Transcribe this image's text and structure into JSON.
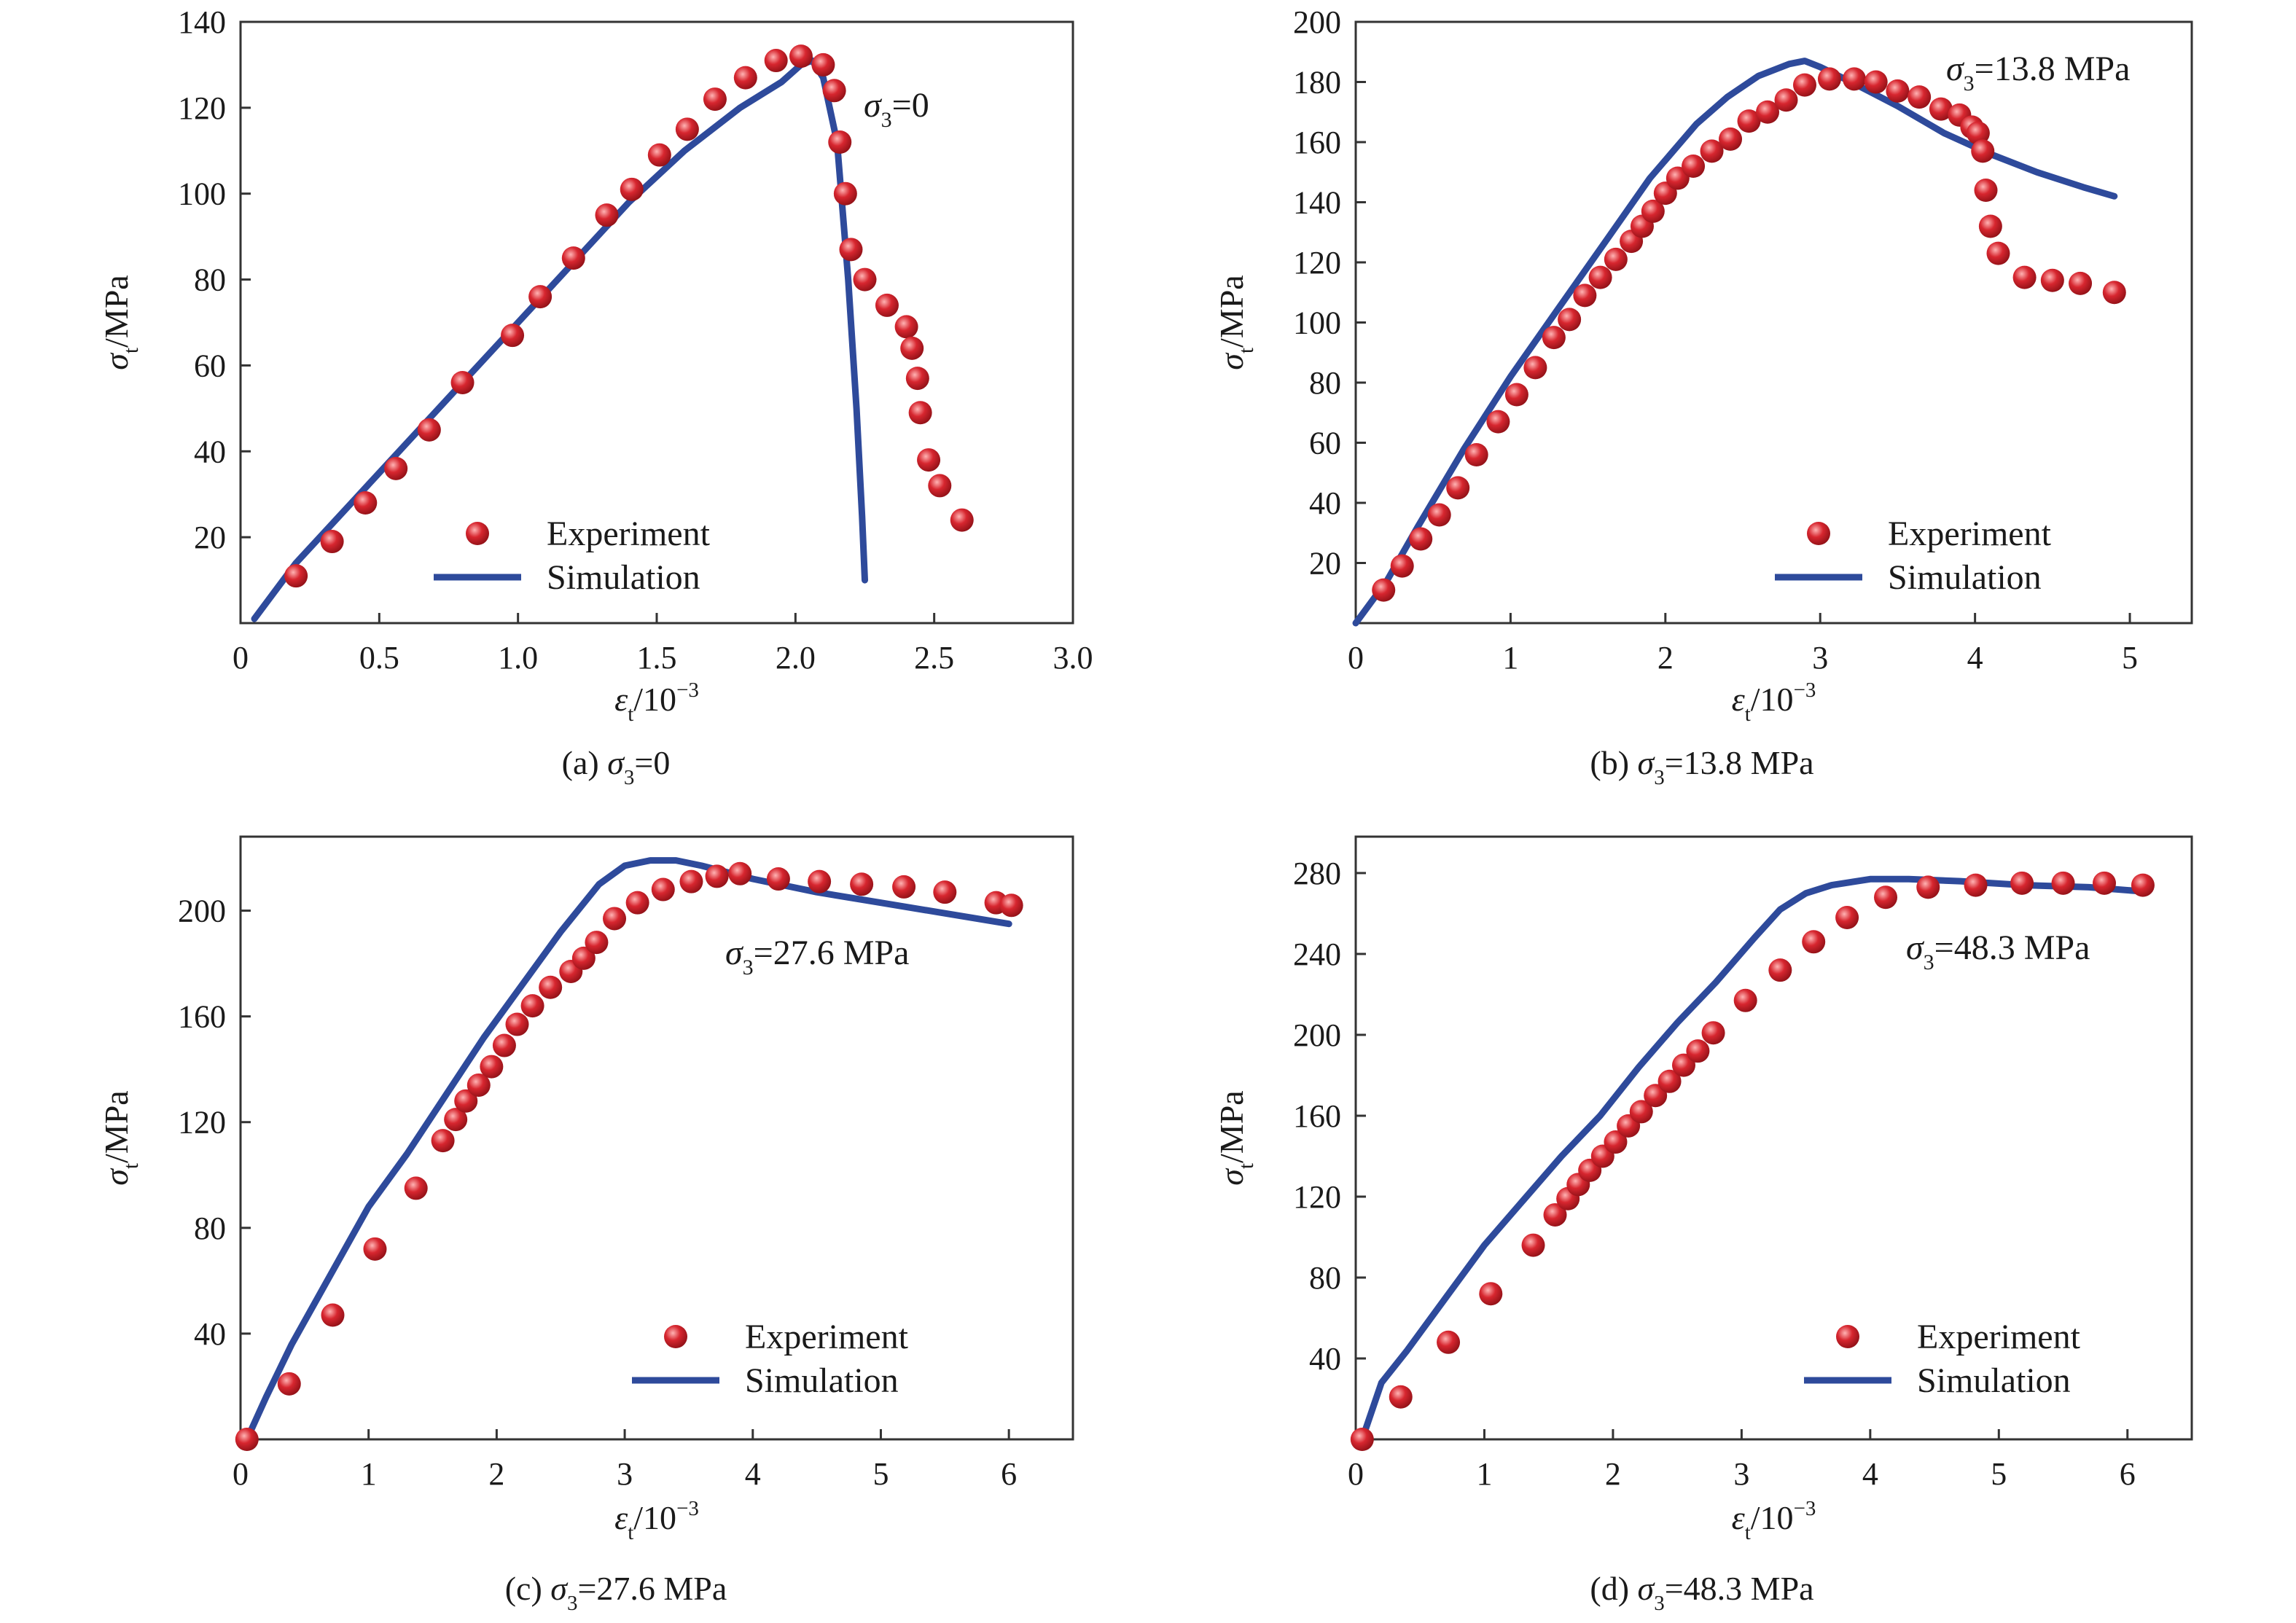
{
  "colors": {
    "experiment": "#d7262f",
    "simulation": "#2e4a9b",
    "axis": "#333333"
  },
  "chart_data": [
    {
      "type": "scatter+line",
      "caption": {
        "pre": "(a) ",
        "sym": "σ",
        "sub": "3",
        "post": "=0"
      },
      "annotation": {
        "sym": "σ",
        "sub": "3",
        "post": "=0"
      },
      "xlabel": {
        "sym": "ε",
        "sub": "t",
        "post": "/10",
        "sup": "−3"
      },
      "ylabel": {
        "sym": "σ",
        "sub": "t",
        "post": "/MPa"
      },
      "xlim": [
        0,
        3.0
      ],
      "ylim": [
        0,
        140
      ],
      "xticks": [
        0,
        0.5,
        1.0,
        1.5,
        2.0,
        2.5,
        3.0
      ],
      "xtick_labels": [
        "0",
        "0.5",
        "1.0",
        "1.5",
        "2.0",
        "2.5",
        "3.0"
      ],
      "yticks": [
        20,
        40,
        60,
        80,
        100,
        120,
        140
      ],
      "ytick_labels": [
        "20",
        "40",
        "60",
        "80",
        "100",
        "120",
        "140"
      ],
      "legend": {
        "experiment": "Experiment",
        "simulation": "Simulation"
      },
      "series": [
        {
          "name": "Experiment",
          "kind": "points",
          "x": [
            0.2,
            0.33,
            0.45,
            0.56,
            0.68,
            0.8,
            0.98,
            1.08,
            1.2,
            1.32,
            1.41,
            1.51,
            1.61,
            1.71,
            1.82,
            1.93,
            2.02,
            2.1,
            2.14,
            2.16,
            2.18,
            2.2,
            2.25,
            2.33,
            2.4,
            2.42,
            2.44,
            2.45,
            2.48,
            2.52,
            2.6
          ],
          "y": [
            11,
            19,
            28,
            36,
            45,
            56,
            67,
            76,
            85,
            95,
            101,
            109,
            115,
            122,
            127,
            131,
            132,
            130,
            124,
            112,
            100,
            87,
            80,
            74,
            69,
            64,
            57,
            49,
            38,
            32,
            24
          ]
        },
        {
          "name": "Simulation",
          "kind": "line",
          "x": [
            0.05,
            0.2,
            0.4,
            0.6,
            0.8,
            1.0,
            1.2,
            1.4,
            1.6,
            1.8,
            1.95,
            2.02,
            2.06,
            2.1,
            2.15,
            2.19,
            2.22,
            2.24,
            2.25
          ],
          "y": [
            1,
            14,
            28,
            42,
            56,
            70,
            84,
            98,
            110,
            120,
            126,
            130,
            131,
            127,
            112,
            80,
            50,
            25,
            10
          ]
        }
      ]
    },
    {
      "type": "scatter+line",
      "caption": {
        "pre": "(b) ",
        "sym": "σ",
        "sub": "3",
        "post": "=13.8 MPa"
      },
      "annotation": {
        "sym": "σ",
        "sub": "3",
        "post": "=13.8 MPa"
      },
      "xlabel": {
        "sym": "ε",
        "sub": "t",
        "post": "/10",
        "sup": "−3"
      },
      "ylabel": {
        "sym": "σ",
        "sub": "t",
        "post": "/MPa"
      },
      "xlim": [
        0,
        5.4
      ],
      "ylim": [
        0,
        200
      ],
      "xticks": [
        0,
        1,
        2,
        3,
        4,
        5
      ],
      "xtick_labels": [
        "0",
        "1",
        "2",
        "3",
        "4",
        "5"
      ],
      "yticks": [
        20,
        40,
        60,
        80,
        100,
        120,
        140,
        160,
        180,
        200
      ],
      "ytick_labels": [
        "20",
        "40",
        "60",
        "80",
        "100",
        "120",
        "140",
        "160",
        "180",
        "200"
      ],
      "legend": {
        "experiment": "Experiment",
        "simulation": "Simulation"
      },
      "series": [
        {
          "name": "Experiment",
          "kind": "points",
          "x": [
            0.18,
            0.3,
            0.42,
            0.54,
            0.66,
            0.78,
            0.92,
            1.04,
            1.16,
            1.28,
            1.38,
            1.48,
            1.58,
            1.68,
            1.78,
            1.85,
            1.92,
            2.0,
            2.08,
            2.18,
            2.3,
            2.42,
            2.54,
            2.66,
            2.78,
            2.9,
            3.06,
            3.22,
            3.36,
            3.5,
            3.64,
            3.78,
            3.9,
            3.98,
            4.02,
            4.05,
            4.07,
            4.1,
            4.15,
            4.32,
            4.5,
            4.68,
            4.9
          ],
          "y": [
            11,
            19,
            28,
            36,
            45,
            56,
            67,
            76,
            85,
            95,
            101,
            109,
            115,
            121,
            127,
            132,
            137,
            143,
            148,
            152,
            157,
            161,
            167,
            170,
            174,
            179,
            181,
            181,
            180,
            177,
            175,
            171,
            169,
            165,
            163,
            157,
            144,
            132,
            123,
            115,
            114,
            113,
            110
          ]
        },
        {
          "name": "Simulation",
          "kind": "line",
          "x": [
            0.0,
            0.2,
            0.4,
            0.7,
            1.0,
            1.3,
            1.6,
            1.9,
            2.2,
            2.4,
            2.6,
            2.8,
            2.9,
            3.0,
            3.2,
            3.5,
            3.8,
            4.1,
            4.4,
            4.7,
            4.9
          ],
          "y": [
            0,
            14,
            32,
            58,
            82,
            104,
            126,
            148,
            166,
            175,
            182,
            186,
            187,
            185,
            180,
            172,
            163,
            156,
            150,
            145,
            142
          ]
        }
      ]
    },
    {
      "type": "scatter+line",
      "caption": {
        "pre": "(c) ",
        "sym": "σ",
        "sub": "3",
        "post": "=27.6 MPa"
      },
      "annotation": {
        "sym": "σ",
        "sub": "3",
        "post": "=27.6 MPa"
      },
      "xlabel": {
        "sym": "ε",
        "sub": "t",
        "post": "/10",
        "sup": "−3"
      },
      "ylabel": {
        "sym": "σ",
        "sub": "t",
        "post": "/MPa"
      },
      "xlim": [
        0,
        6.5
      ],
      "ylim": [
        0,
        228
      ],
      "xticks": [
        0,
        1,
        2,
        3,
        4,
        5,
        6
      ],
      "xtick_labels": [
        "0",
        "1",
        "2",
        "3",
        "4",
        "5",
        "6"
      ],
      "yticks": [
        40,
        80,
        120,
        160,
        200
      ],
      "ytick_labels": [
        "40",
        "80",
        "120",
        "160",
        "200"
      ],
      "legend": {
        "experiment": "Experiment",
        "simulation": "Simulation"
      },
      "series": [
        {
          "name": "Experiment",
          "kind": "points",
          "x": [
            0.05,
            0.38,
            0.72,
            1.05,
            1.37,
            1.58,
            1.68,
            1.76,
            1.86,
            1.96,
            2.06,
            2.16,
            2.28,
            2.42,
            2.58,
            2.68,
            2.78,
            2.92,
            3.1,
            3.3,
            3.52,
            3.72,
            3.9,
            4.2,
            4.52,
            4.85,
            5.18,
            5.5,
            5.9,
            6.02
          ],
          "y": [
            0,
            21,
            47,
            72,
            95,
            113,
            121,
            128,
            134,
            141,
            149,
            157,
            164,
            171,
            177,
            182,
            188,
            197,
            203,
            208,
            211,
            213,
            214,
            212,
            211,
            210,
            209,
            207,
            203,
            202
          ]
        },
        {
          "name": "Simulation",
          "kind": "line",
          "x": [
            0.05,
            0.2,
            0.4,
            0.7,
            1.0,
            1.3,
            1.6,
            1.9,
            2.2,
            2.5,
            2.8,
            3.0,
            3.2,
            3.4,
            3.6,
            4.0,
            4.5,
            5.0,
            5.5,
            6.0
          ],
          "y": [
            0,
            16,
            36,
            62,
            88,
            108,
            130,
            152,
            172,
            192,
            210,
            217,
            219,
            219,
            217,
            212,
            207,
            203,
            199,
            195
          ]
        }
      ]
    },
    {
      "type": "scatter+line",
      "caption": {
        "pre": "(d) ",
        "sym": "σ",
        "sub": "3",
        "post": "=48.3 MPa"
      },
      "annotation": {
        "sym": "σ",
        "sub": "3",
        "post": "=48.3 MPa"
      },
      "xlabel": {
        "sym": "ε",
        "sub": "t",
        "post": "/10",
        "sup": "−3"
      },
      "ylabel": {
        "sym": "σ",
        "sub": "t",
        "post": "/MPa"
      },
      "xlim": [
        0,
        6.5
      ],
      "ylim": [
        0,
        298
      ],
      "xticks": [
        0,
        1,
        2,
        3,
        4,
        5,
        6
      ],
      "xtick_labels": [
        "0",
        "1",
        "2",
        "3",
        "4",
        "5",
        "6"
      ],
      "yticks": [
        40,
        80,
        120,
        160,
        200,
        240,
        280
      ],
      "ytick_labels": [
        "40",
        "80",
        "120",
        "160",
        "200",
        "240",
        "280"
      ],
      "legend": {
        "experiment": "Experiment",
        "simulation": "Simulation"
      },
      "series": [
        {
          "name": "Experiment",
          "kind": "points",
          "x": [
            0.05,
            0.35,
            0.72,
            1.05,
            1.38,
            1.55,
            1.65,
            1.73,
            1.82,
            1.92,
            2.02,
            2.12,
            2.22,
            2.33,
            2.44,
            2.55,
            2.66,
            2.78,
            3.03,
            3.3,
            3.56,
            3.82,
            4.12,
            4.45,
            4.82,
            5.18,
            5.5,
            5.82,
            6.12
          ],
          "y": [
            0,
            21,
            48,
            72,
            96,
            111,
            119,
            126,
            133,
            140,
            147,
            155,
            162,
            170,
            177,
            185,
            192,
            201,
            217,
            232,
            246,
            258,
            268,
            273,
            274,
            275,
            275,
            275,
            274
          ]
        },
        {
          "name": "Simulation",
          "kind": "line",
          "x": [
            0.05,
            0.2,
            0.4,
            0.7,
            1.0,
            1.3,
            1.6,
            1.9,
            2.2,
            2.5,
            2.8,
            3.1,
            3.3,
            3.5,
            3.7,
            4.0,
            4.3,
            4.7,
            5.2,
            5.7,
            6.1
          ],
          "y": [
            0,
            28,
            44,
            70,
            96,
            118,
            140,
            160,
            184,
            206,
            226,
            248,
            262,
            270,
            274,
            277,
            277,
            276,
            274,
            273,
            271
          ]
        }
      ]
    }
  ]
}
